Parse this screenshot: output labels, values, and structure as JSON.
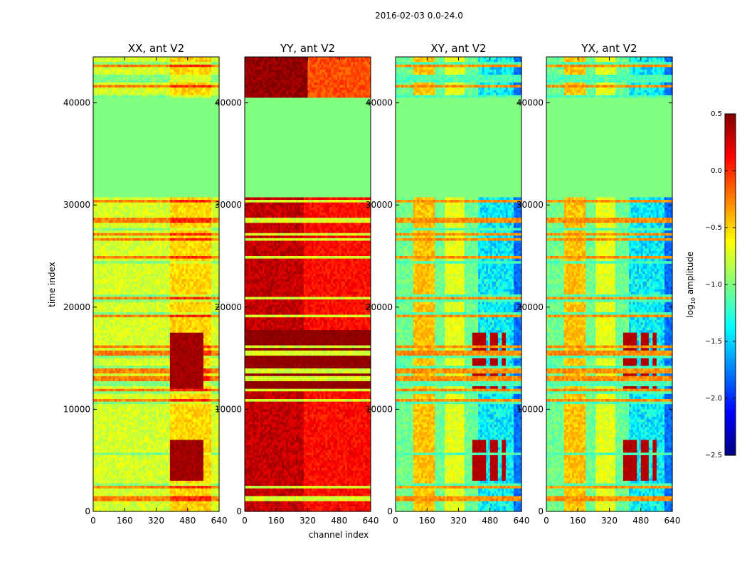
{
  "chart_data": {
    "type": "heatmap",
    "suptitle": "2016-02-03 0.0-24.0",
    "xlabel": "channel index",
    "ylabel": "time index",
    "xlim": [
      0,
      640
    ],
    "ylim": [
      0,
      44500
    ],
    "xticks": [
      0,
      160,
      320,
      480,
      640
    ],
    "yticks": [
      0,
      10000,
      20000,
      30000,
      40000
    ],
    "colorscale": "jet",
    "colorbar": {
      "label_prefix": "log",
      "label_sub": "10",
      "label_suffix": " amplitude",
      "range": [
        -2.5,
        0.5
      ],
      "ticks": [
        0.5,
        0.0,
        -0.5,
        -1.0,
        -1.5,
        -2.0,
        -2.5
      ],
      "tick_labels": [
        "0.5",
        "0.0",
        "−0.5",
        "−1.0",
        "−1.5",
        "−2.0",
        "−2.5"
      ]
    },
    "flagged_time_range": [
      30700,
      40500
    ],
    "panels": [
      {
        "title": "XX, ant V2",
        "kind": "xx"
      },
      {
        "title": "YY, ant V2",
        "kind": "yy"
      },
      {
        "title": "XY, ant V2",
        "kind": "xy"
      },
      {
        "title": "YX, ant V2",
        "kind": "yx"
      }
    ]
  }
}
